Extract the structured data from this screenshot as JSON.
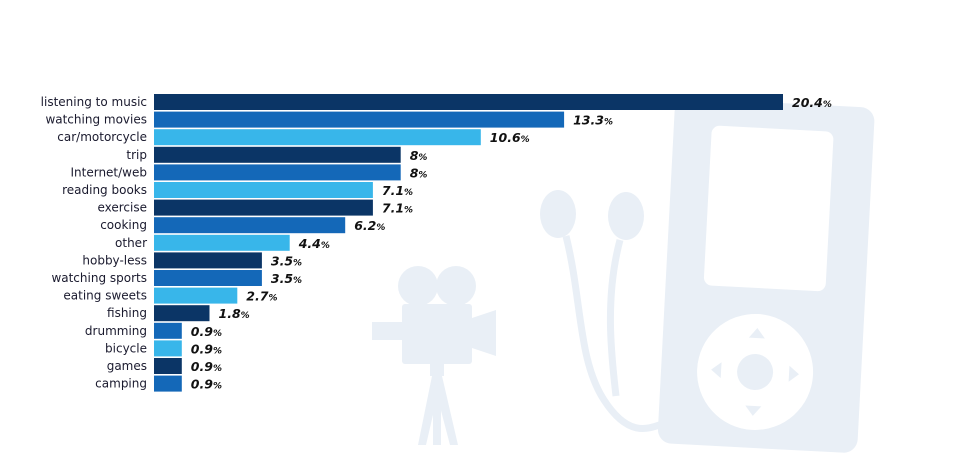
{
  "chart_data": {
    "type": "bar",
    "orientation": "horizontal",
    "categories": [
      "listening to music",
      "watching movies",
      "car/motorcycle",
      "trip",
      "Internet/web",
      "reading books",
      "exercise",
      "cooking",
      "other",
      "hobby-less",
      "watching sports",
      "eating sweets",
      "fishing",
      "drumming",
      "bicycle",
      "games",
      "camping"
    ],
    "values": [
      20.4,
      13.3,
      10.6,
      8,
      8,
      7.1,
      7.1,
      6.2,
      4.4,
      3.5,
      3.5,
      2.7,
      1.8,
      0.9,
      0.9,
      0.9,
      0.9
    ],
    "value_labels": [
      "20.4",
      "13.3",
      "10.6",
      "8",
      "8",
      "7.1",
      "7.1",
      "6.2",
      "4.4",
      "3.5",
      "3.5",
      "2.7",
      "1.8",
      "0.9",
      "0.9",
      "0.9",
      "0.9"
    ],
    "unit": "%",
    "xlim": [
      0,
      20.4
    ],
    "grid": false,
    "legend": "none",
    "bar_colors": [
      "#0b3566",
      "#1468b8",
      "#38b6ea",
      "#0b3566",
      "#1468b8",
      "#38b6ea",
      "#0b3566",
      "#1468b8",
      "#38b6ea",
      "#0b3566",
      "#1468b8",
      "#38b6ea",
      "#0b3566",
      "#1468b8",
      "#38b6ea",
      "#0b3566",
      "#1468b8"
    ]
  },
  "decor": {
    "background_icons": [
      "film-camera-icon",
      "earphones-icon",
      "music-player-icon"
    ],
    "icon_color": "#e9eff6"
  }
}
